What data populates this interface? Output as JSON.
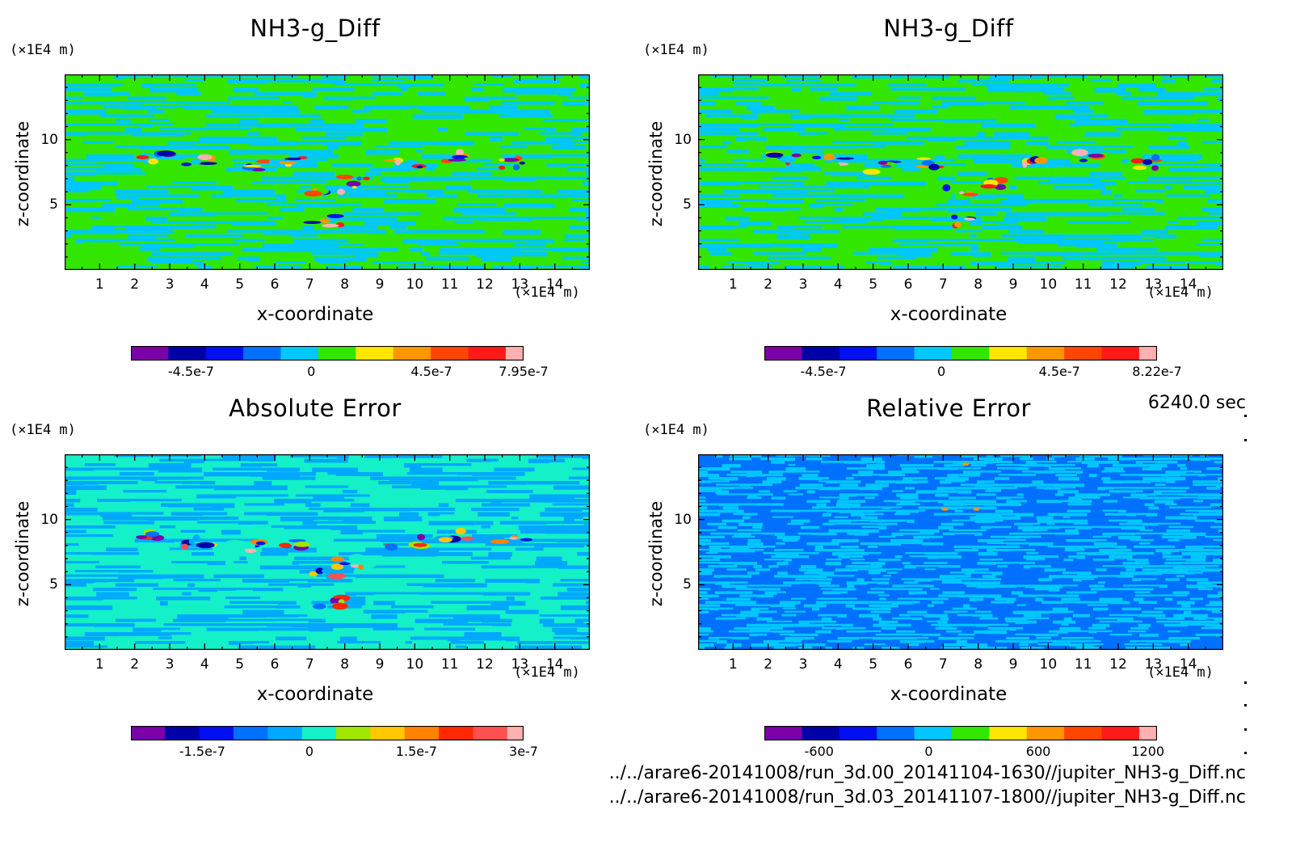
{
  "time_label": "6240.0 sec",
  "file_paths": [
    "../../arare6-20141008/run_3d.00_20141104-1630//jupiter_NH3-g_Diff.nc",
    "../../arare6-20141008/run_3d.03_20141107-1800//jupiter_NH3-g_Diff.nc"
  ],
  "chart_data": [
    {
      "type": "heatmap",
      "title": "NH3-g_Diff",
      "xlabel": "x-coordinate",
      "ylabel": "z-coordinate",
      "x_unit": "(×1E4 m)",
      "y_unit": "(×1E4 m)",
      "xlim": [
        0,
        15
      ],
      "ylim": [
        0,
        15
      ],
      "x_ticks": [
        "1",
        "2",
        "3",
        "4",
        "5",
        "6",
        "7",
        "8",
        "9",
        "10",
        "11",
        "12",
        "13",
        "14"
      ],
      "y_ticks": [
        "5",
        "10"
      ],
      "colorbar": {
        "colors": [
          "#7b00a8",
          "#0000a8",
          "#0010f0",
          "#0070ff",
          "#00c8ff",
          "#32e600",
          "#ffe600",
          "#ff9600",
          "#ff4600",
          "#ff1a1a",
          "#ffb0b0"
        ],
        "labels": [
          "-4.5e-7",
          "0",
          "4.5e-7",
          "7.95e-7"
        ],
        "min": -6.75e-07,
        "max": 7.95e-07
      },
      "background_colors": [
        "#32e600",
        "#00c8ff"
      ]
    },
    {
      "type": "heatmap",
      "title": "NH3-g_Diff",
      "xlabel": "x-coordinate",
      "ylabel": "z-coordinate",
      "x_unit": "(×1E4 m)",
      "y_unit": "(×1E4 m)",
      "xlim": [
        0,
        15
      ],
      "ylim": [
        0,
        15
      ],
      "x_ticks": [
        "1",
        "2",
        "3",
        "4",
        "5",
        "6",
        "7",
        "8",
        "9",
        "10",
        "11",
        "12",
        "13",
        "14"
      ],
      "y_ticks": [
        "5",
        "10"
      ],
      "colorbar": {
        "colors": [
          "#7b00a8",
          "#0000a8",
          "#0010f0",
          "#0070ff",
          "#00c8ff",
          "#32e600",
          "#ffe600",
          "#ff9600",
          "#ff4600",
          "#ff1a1a",
          "#ffb0b0"
        ],
        "labels": [
          "-4.5e-7",
          "0",
          "4.5e-7",
          "8.22e-7"
        ],
        "min": -6.75e-07,
        "max": 8.22e-07
      },
      "background_colors": [
        "#32e600",
        "#00c8ff"
      ]
    },
    {
      "type": "heatmap",
      "title": "Absolute Error",
      "xlabel": "x-coordinate",
      "ylabel": "z-coordinate",
      "x_unit": "(×1E4 m)",
      "y_unit": "(×1E4 m)",
      "xlim": [
        0,
        15
      ],
      "ylim": [
        0,
        15
      ],
      "x_ticks": [
        "1",
        "2",
        "3",
        "4",
        "5",
        "6",
        "7",
        "8",
        "9",
        "10",
        "11",
        "12",
        "13",
        "14"
      ],
      "y_ticks": [
        "5",
        "10"
      ],
      "colorbar": {
        "colors": [
          "#7b00a8",
          "#0000a8",
          "#0010f0",
          "#0070ff",
          "#00a8ff",
          "#14f0c8",
          "#a0e600",
          "#ffc800",
          "#ff8200",
          "#ff2800",
          "#ff5050",
          "#ffb0b0"
        ],
        "labels": [
          "-1.5e-7",
          "0",
          "1.5e-7",
          "3e-7"
        ],
        "min": -2.5e-07,
        "max": 3e-07
      },
      "background_colors": [
        "#14f0c8",
        "#00a8ff"
      ]
    },
    {
      "type": "heatmap",
      "title": "Relative Error",
      "xlabel": "x-coordinate",
      "ylabel": "z-coordinate",
      "x_unit": "(×1E4 m)",
      "y_unit": "(×1E4 m)",
      "xlim": [
        0,
        15
      ],
      "ylim": [
        0,
        15
      ],
      "x_ticks": [
        "1",
        "2",
        "3",
        "4",
        "5",
        "6",
        "7",
        "8",
        "9",
        "10",
        "11",
        "12",
        "13",
        "14"
      ],
      "y_ticks": [
        "5",
        "10"
      ],
      "colorbar": {
        "colors": [
          "#7b00a8",
          "#0000a8",
          "#0010f0",
          "#0070ff",
          "#00c8ff",
          "#32e600",
          "#ffe600",
          "#ff9600",
          "#ff4600",
          "#ff1a1a",
          "#ffb0b0"
        ],
        "labels": [
          "-600",
          "0",
          "600",
          "1200"
        ],
        "min": -900,
        "max": 1250
      },
      "background_colors": [
        "#0070ff",
        "#00c8ff"
      ]
    }
  ]
}
